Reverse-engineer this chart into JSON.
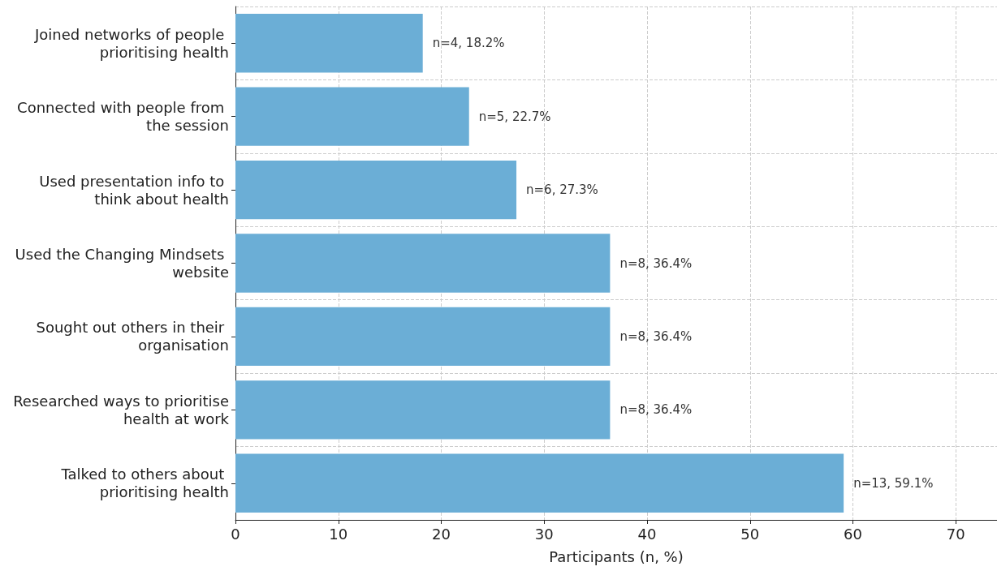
{
  "chart_data": {
    "type": "bar",
    "orientation": "horizontal",
    "xlabel": "Participants (n, %)",
    "categories": [
      "Joined networks of people prioritising health",
      "Connected with people from the session",
      "Used presentation info to think about health",
      "Used the Changing Mindsets website",
      "Sought out others in their organisation",
      "Researched ways to prioritise health at work",
      "Talked to others about prioritising health"
    ],
    "values": [
      18.2,
      22.7,
      27.3,
      36.4,
      36.4,
      36.4,
      59.1
    ],
    "value_labels": [
      "n=4, 18.2%",
      "n=5, 22.7%",
      "n=6, 27.3%",
      "n=8, 36.4%",
      "n=8, 36.4%",
      "n=8, 36.4%",
      "n=13, 59.1%"
    ],
    "color": "#6baed6",
    "xlim": [
      0,
      74
    ],
    "xticks": [
      0,
      10,
      20,
      30,
      40,
      50,
      60,
      70
    ],
    "grid": true
  }
}
